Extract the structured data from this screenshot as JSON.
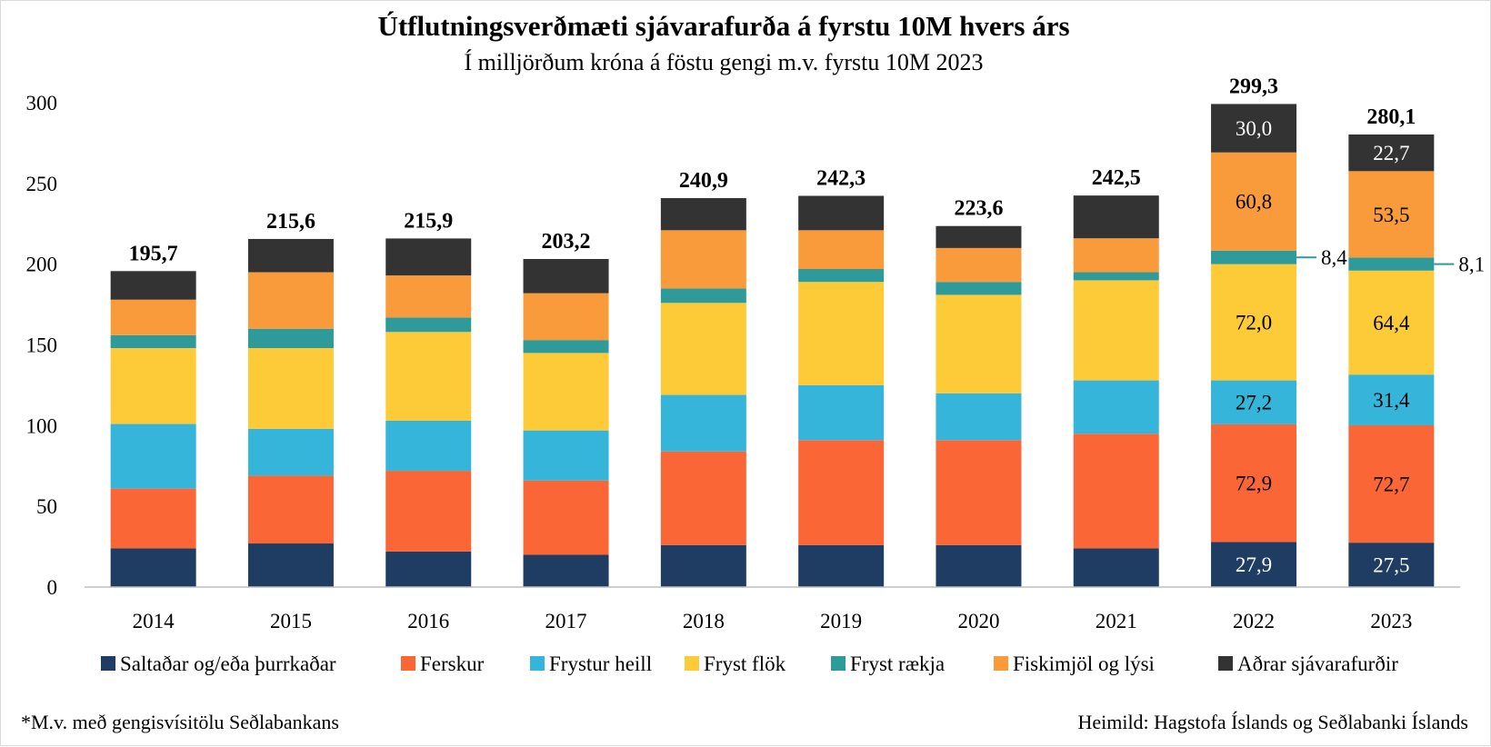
{
  "chart_data": {
    "type": "bar",
    "stacked": true,
    "title": "Útflutningsverðmæti sjávarafurða á fyrstu 10M hvers árs",
    "subtitle": "Í milljörðum króna á föstu gengi m.v. fyrstu 10M 2023",
    "categories": [
      "2014",
      "2015",
      "2016",
      "2017",
      "2018",
      "2019",
      "2020",
      "2021",
      "2022",
      "2023"
    ],
    "ylim": [
      0,
      300
    ],
    "yticks": [
      0,
      50,
      100,
      150,
      200,
      250,
      300
    ],
    "grid": false,
    "legend_position": "bottom",
    "series": [
      {
        "name": "Saltaðar og/eða þurrkaðar",
        "color": "#1f3d63",
        "label_color": "#ffffff",
        "values": [
          24,
          27,
          22,
          20,
          26,
          26,
          26,
          24,
          27.9,
          27.5
        ],
        "labels": [
          "",
          "",
          "",
          "",
          "",
          "",
          "",
          "",
          "27,9",
          "27,5"
        ]
      },
      {
        "name": "Ferskur",
        "color": "#fb6637",
        "label_color": "#000000",
        "values": [
          37,
          42,
          50,
          46,
          58,
          65,
          65,
          71,
          72.9,
          72.7
        ],
        "labels": [
          "",
          "",
          "",
          "",
          "",
          "",
          "",
          "",
          "72,9",
          "72,7"
        ]
      },
      {
        "name": "Frystur heill",
        "color": "#34b5d9",
        "label_color": "#000000",
        "values": [
          40,
          29,
          31,
          31,
          35,
          34,
          29,
          33,
          27.2,
          31.4
        ],
        "labels": [
          "",
          "",
          "",
          "",
          "",
          "",
          "",
          "",
          "27,2",
          "31,4"
        ]
      },
      {
        "name": "Fryst flök",
        "color": "#fdcb37",
        "label_color": "#000000",
        "values": [
          47,
          50,
          55,
          48,
          57,
          64,
          61,
          62,
          72.0,
          64.4
        ],
        "labels": [
          "",
          "",
          "",
          "",
          "",
          "",
          "",
          "",
          "72,0",
          "64,4"
        ]
      },
      {
        "name": "Fryst rækja",
        "color": "#2f9a9a",
        "label_color": "#000000",
        "values": [
          8,
          12,
          9,
          8,
          9,
          8,
          8,
          5,
          8.4,
          8.1
        ],
        "labels": [
          "",
          "",
          "",
          "",
          "",
          "",
          "",
          "",
          "8,4",
          "8,1"
        ]
      },
      {
        "name": "Fiskimjöl og lýsi",
        "color": "#f99b3b",
        "label_color": "#000000",
        "values": [
          22,
          35,
          26,
          29,
          36,
          24,
          21,
          21,
          60.8,
          53.5
        ],
        "labels": [
          "",
          "",
          "",
          "",
          "",
          "",
          "",
          "",
          "60,8",
          "53,5"
        ]
      },
      {
        "name": "Aðrar sjávarafurðir",
        "color": "#333333",
        "label_color": "#ffffff",
        "values": [
          17.7,
          20.6,
          22.9,
          21.2,
          19.9,
          21.3,
          13.6,
          26.5,
          30.0,
          22.7
        ],
        "labels": [
          "",
          "",
          "",
          "",
          "",
          "",
          "",
          "",
          "30,0",
          "22,7"
        ]
      }
    ],
    "totals": [
      "195,7",
      "215,6",
      "215,9",
      "203,2",
      "240,9",
      "242,3",
      "223,6",
      "242,5",
      "299,3",
      "280,1"
    ]
  },
  "footnote_left": "*M.v. með gengisvísitölu  Seðlabankans",
  "footnote_right": "Heimild:  Hagstofa Íslands og Seðlabanki Íslands"
}
